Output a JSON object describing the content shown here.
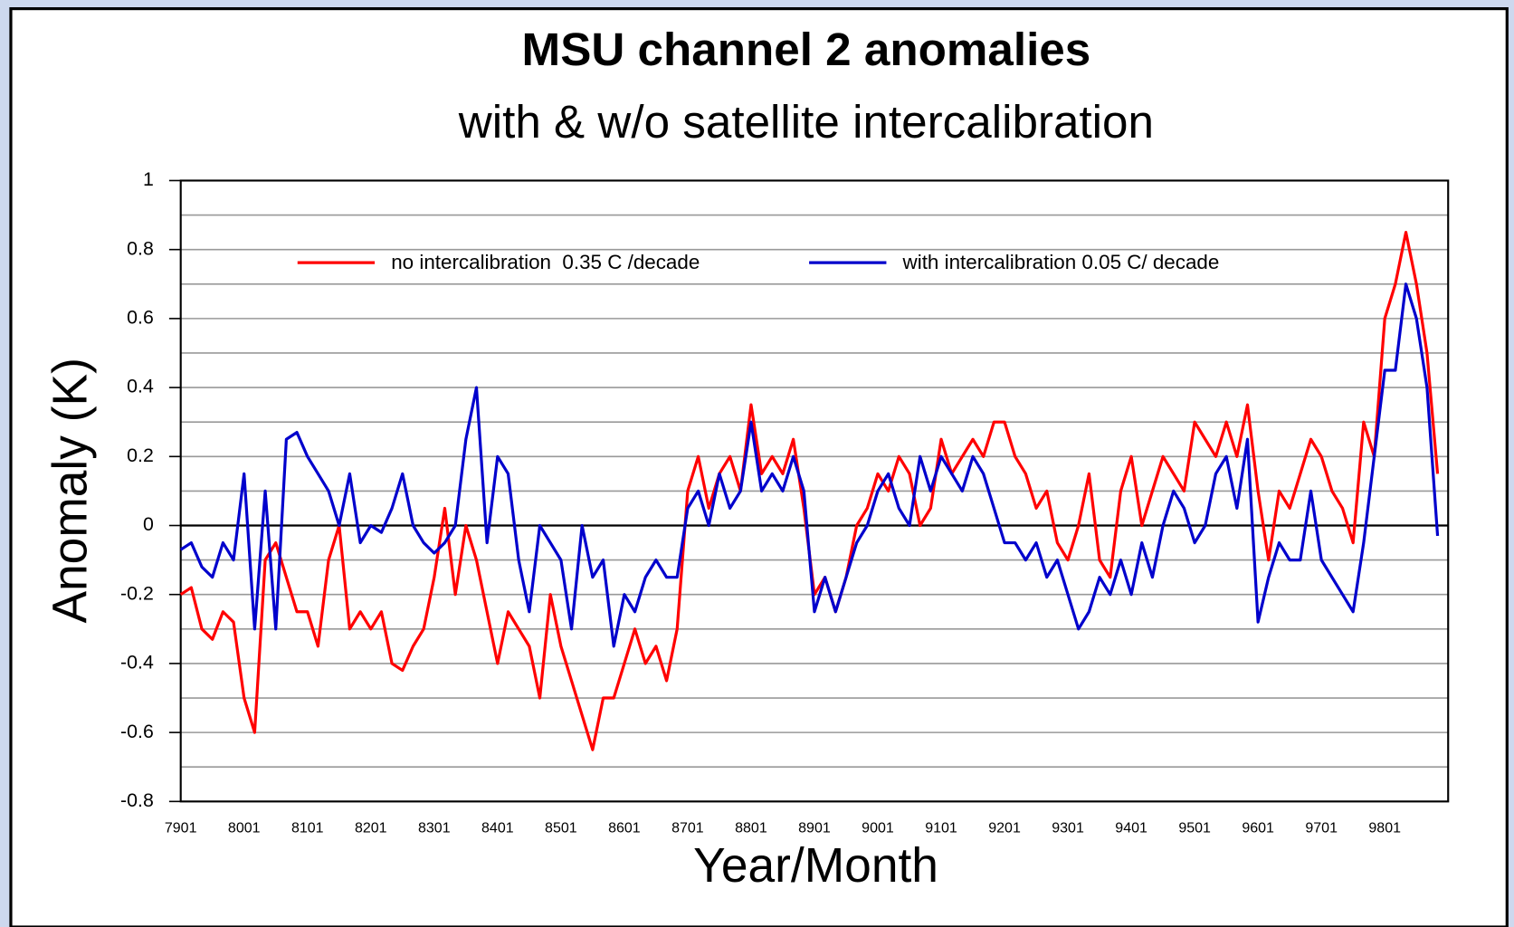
{
  "chart_data": {
    "type": "line",
    "title": "MSU channel 2 anomalies",
    "subtitle": "with & w/o satellite intercalibration",
    "y_label": "Anomaly (K)",
    "x_label": "Year/Month",
    "categories": [
      "7901",
      null,
      null,
      null,
      null,
      null,
      "8001",
      null,
      null,
      null,
      null,
      null,
      "8101",
      null,
      null,
      null,
      null,
      null,
      "8201",
      null,
      null,
      null,
      null,
      null,
      "8301",
      null,
      null,
      null,
      null,
      null,
      "8401",
      null,
      null,
      null,
      null,
      null,
      "8501",
      null,
      null,
      null,
      null,
      null,
      "8601",
      null,
      null,
      null,
      null,
      null,
      "8701",
      null,
      null,
      null,
      null,
      null,
      "8801",
      null,
      null,
      null,
      null,
      null,
      "8901",
      null,
      null,
      null,
      null,
      null,
      "9001",
      null,
      null,
      null,
      null,
      null,
      "9101",
      null,
      null,
      null,
      null,
      null,
      "9201",
      null,
      null,
      null,
      null,
      null,
      "9301",
      null,
      null,
      null,
      null,
      null,
      "9401",
      null,
      null,
      null,
      null,
      null,
      "9501",
      null,
      null,
      null,
      null,
      null,
      "9601",
      null,
      null,
      null,
      null,
      null,
      "9701",
      null,
      null,
      null,
      null,
      null,
      "9801",
      null,
      null,
      null,
      null,
      null
    ],
    "series": [
      {
        "name": "no intercalibration  0.35 C /decade",
        "color": "#ff0000",
        "values": [
          -0.2,
          -0.18,
          -0.3,
          -0.33,
          -0.25,
          -0.28,
          -0.5,
          -0.6,
          -0.1,
          -0.05,
          -0.15,
          -0.25,
          -0.25,
          -0.35,
          -0.1,
          0.0,
          -0.3,
          -0.25,
          -0.3,
          -0.25,
          -0.4,
          -0.42,
          -0.35,
          -0.3,
          -0.15,
          0.05,
          -0.2,
          0.0,
          -0.1,
          -0.25,
          -0.4,
          -0.25,
          -0.3,
          -0.35,
          -0.5,
          -0.2,
          -0.35,
          -0.45,
          -0.55,
          -0.65,
          -0.5,
          -0.5,
          -0.4,
          -0.3,
          -0.4,
          -0.35,
          -0.45,
          -0.3,
          0.1,
          0.2,
          0.05,
          0.15,
          0.2,
          0.1,
          0.35,
          0.15,
          0.2,
          0.15,
          0.25,
          0.05,
          -0.2,
          -0.15,
          -0.25,
          -0.15,
          0.0,
          0.05,
          0.15,
          0.1,
          0.2,
          0.15,
          0.0,
          0.05,
          0.25,
          0.15,
          0.2,
          0.25,
          0.2,
          0.3,
          0.3,
          0.2,
          0.15,
          0.05,
          0.1,
          -0.05,
          -0.1,
          0.0,
          0.15,
          -0.1,
          -0.15,
          0.1,
          0.2,
          0.0,
          0.1,
          0.2,
          0.15,
          0.1,
          0.3,
          0.25,
          0.2,
          0.3,
          0.2,
          0.35,
          0.1,
          -0.1,
          0.1,
          0.05,
          0.15,
          0.25,
          0.2,
          0.1,
          0.05,
          -0.05,
          0.3,
          0.2,
          0.6,
          0.7,
          0.85,
          0.7,
          0.5,
          0.15
        ]
      },
      {
        "name": "with intercalibration 0.05 C/ decade",
        "color": "#0000cc",
        "values": [
          -0.07,
          -0.05,
          -0.12,
          -0.15,
          -0.05,
          -0.1,
          0.15,
          -0.3,
          0.1,
          -0.3,
          0.25,
          0.27,
          0.2,
          0.15,
          0.1,
          0.0,
          0.15,
          -0.05,
          0.0,
          -0.02,
          0.05,
          0.15,
          0.0,
          -0.05,
          -0.08,
          -0.05,
          0.0,
          0.25,
          0.4,
          -0.05,
          0.2,
          0.15,
          -0.1,
          -0.25,
          0.0,
          -0.05,
          -0.1,
          -0.3,
          0.0,
          -0.15,
          -0.1,
          -0.35,
          -0.2,
          -0.25,
          -0.15,
          -0.1,
          -0.15,
          -0.15,
          0.05,
          0.1,
          0.0,
          0.15,
          0.05,
          0.1,
          0.3,
          0.1,
          0.15,
          0.1,
          0.2,
          0.1,
          -0.25,
          -0.15,
          -0.25,
          -0.15,
          -0.05,
          0.0,
          0.1,
          0.15,
          0.05,
          0.0,
          0.2,
          0.1,
          0.2,
          0.15,
          0.1,
          0.2,
          0.15,
          0.05,
          -0.05,
          -0.05,
          -0.1,
          -0.05,
          -0.15,
          -0.1,
          -0.2,
          -0.3,
          -0.25,
          -0.15,
          -0.2,
          -0.1,
          -0.2,
          -0.05,
          -0.15,
          0.0,
          0.1,
          0.05,
          -0.05,
          0.0,
          0.15,
          0.2,
          0.05,
          0.25,
          -0.28,
          -0.15,
          -0.05,
          -0.1,
          -0.1,
          0.1,
          -0.1,
          -0.15,
          -0.2,
          -0.25,
          -0.05,
          0.2,
          0.45,
          0.45,
          0.7,
          0.6,
          0.4,
          -0.03
        ]
      }
    ],
    "ylim": [
      -0.8,
      1
    ],
    "yticks": [
      -0.8,
      -0.6,
      -0.4,
      -0.2,
      0,
      0.2,
      0.4,
      0.6,
      0.8,
      1
    ],
    "y_minor_ticks": [
      -0.7,
      -0.5,
      -0.3,
      -0.1,
      0.1,
      0.3,
      0.5,
      0.7,
      0.9
    ],
    "grid": true,
    "legend": "top"
  }
}
